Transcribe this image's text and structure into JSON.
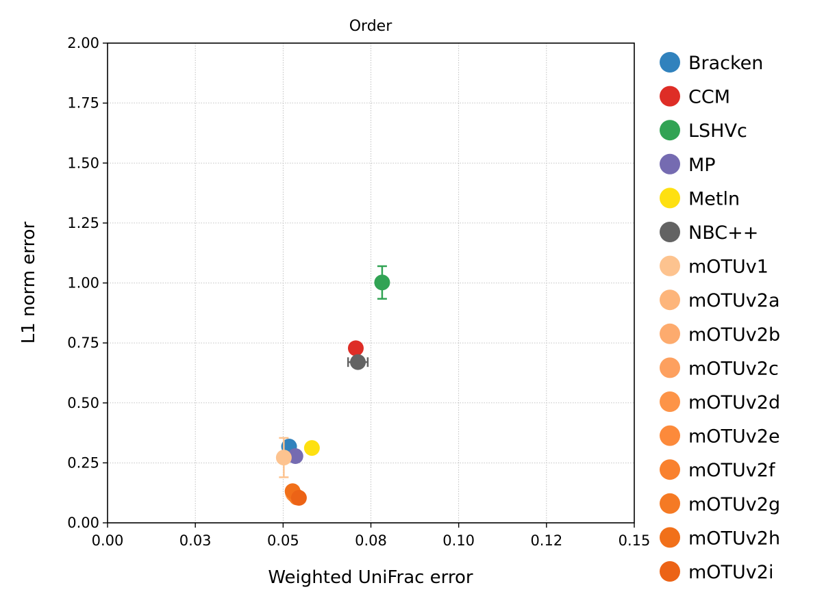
{
  "chart_data": {
    "type": "scatter",
    "title": "Order",
    "xlabel": "Weighted UniFrac error",
    "ylabel": "L1 norm error",
    "xlim": [
      0.0,
      0.15
    ],
    "ylim": [
      0.0,
      2.0
    ],
    "x_ticks": [
      0.0,
      0.025,
      0.05,
      0.075,
      0.1,
      0.125,
      0.15
    ],
    "x_tick_labels": [
      "0.00",
      "0.03",
      "0.05",
      "0.08",
      "0.10",
      "0.12",
      "0.15"
    ],
    "y_ticks": [
      0.0,
      0.25,
      0.5,
      0.75,
      1.0,
      1.25,
      1.5,
      1.75,
      2.0
    ],
    "y_tick_labels": [
      "0.00",
      "0.25",
      "0.50",
      "0.75",
      "1.00",
      "1.25",
      "1.50",
      "1.75",
      "2.00"
    ],
    "grid": true,
    "legend_position": "outside-right",
    "series": [
      {
        "name": "Bracken",
        "color": "#3182bd",
        "x": 0.0517,
        "y": 0.318,
        "xerr": 0.0,
        "yerr": 0.0
      },
      {
        "name": "CCM",
        "color": "#de2d26",
        "x": 0.0707,
        "y": 0.728,
        "xerr": 0.0,
        "yerr": 0.0
      },
      {
        "name": "LSHVc",
        "color": "#31a354",
        "x": 0.0782,
        "y": 1.002,
        "xerr": 0.0,
        "yerr": 0.068
      },
      {
        "name": "MP",
        "color": "#756bb1",
        "x": 0.0535,
        "y": 0.278,
        "xerr": 0.0,
        "yerr": 0.0
      },
      {
        "name": "Metln",
        "color": "#fee011",
        "x": 0.0582,
        "y": 0.312,
        "xerr": 0.0,
        "yerr": 0.0
      },
      {
        "name": "NBC++",
        "color": "#636363",
        "x": 0.0713,
        "y": 0.67,
        "xerr": 0.0028,
        "yerr": 0.0
      },
      {
        "name": "mOTUv1",
        "color": "#fdc38f",
        "x": 0.0502,
        "y": 0.272,
        "xerr": 0.0,
        "yerr": 0.082
      },
      {
        "name": "mOTUv2a",
        "color": "#fdb57b",
        "x": 0.0528,
        "y": 0.122,
        "xerr": 0.0,
        "yerr": 0.0
      },
      {
        "name": "mOTUv2b",
        "color": "#fdab6e",
        "x": 0.0534,
        "y": 0.115,
        "xerr": 0.0,
        "yerr": 0.0
      },
      {
        "name": "mOTUv2c",
        "color": "#fda05f",
        "x": 0.0537,
        "y": 0.11,
        "xerr": 0.0,
        "yerr": 0.0
      },
      {
        "name": "mOTUv2d",
        "color": "#fd9448",
        "x": 0.054,
        "y": 0.108,
        "xerr": 0.0,
        "yerr": 0.0
      },
      {
        "name": "mOTUv2e",
        "color": "#fc8a3b",
        "x": 0.0531,
        "y": 0.118,
        "xerr": 0.0,
        "yerr": 0.0
      },
      {
        "name": "mOTUv2f",
        "color": "#f9812e",
        "x": 0.0536,
        "y": 0.112,
        "xerr": 0.0,
        "yerr": 0.0
      },
      {
        "name": "mOTUv2g",
        "color": "#f57a24",
        "x": 0.0539,
        "y": 0.106,
        "xerr": 0.0,
        "yerr": 0.0
      },
      {
        "name": "mOTUv2h",
        "color": "#f1701a",
        "x": 0.0527,
        "y": 0.132,
        "xerr": 0.0,
        "yerr": 0.0
      },
      {
        "name": "mOTUv2i",
        "color": "#ec6316",
        "x": 0.0545,
        "y": 0.104,
        "xerr": 0.0,
        "yerr": 0.0
      }
    ]
  }
}
